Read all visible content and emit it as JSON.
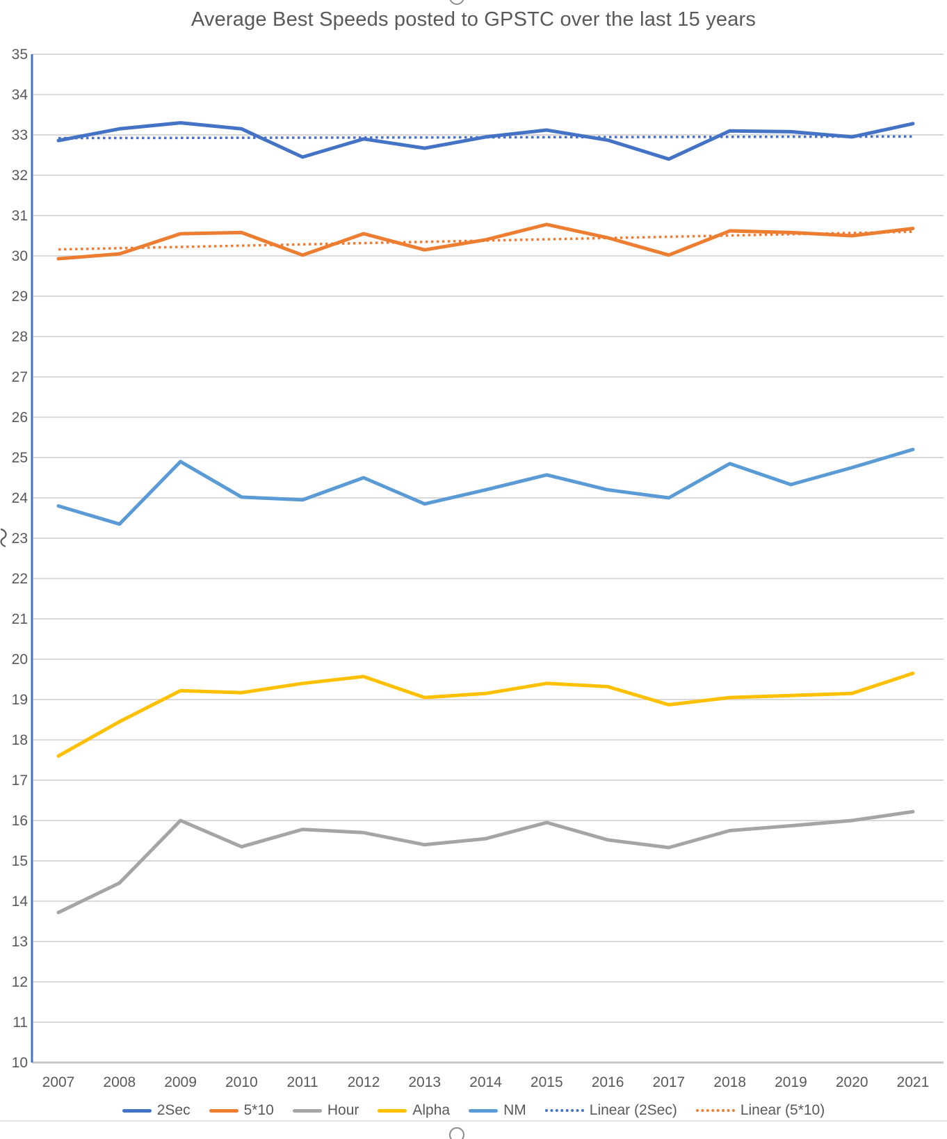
{
  "chart_data": {
    "type": "line",
    "title": "Average Best Speeds posted to GPSTC over the last 15 years",
    "categories": [
      "2007",
      "2008",
      "2009",
      "2010",
      "2011",
      "2012",
      "2013",
      "2014",
      "2015",
      "2016",
      "2017",
      "2018",
      "2019",
      "2020",
      "2021"
    ],
    "xlabel": "",
    "ylabel": "",
    "ylim": [
      10,
      35
    ],
    "yticks": [
      10,
      11,
      12,
      13,
      14,
      15,
      16,
      17,
      18,
      19,
      20,
      21,
      22,
      23,
      24,
      25,
      26,
      27,
      28,
      29,
      30,
      31,
      32,
      33,
      34,
      35
    ],
    "grid": true,
    "legend_position": "bottom",
    "series": [
      {
        "name": "2Sec",
        "color": "#4472C4",
        "style": "solid",
        "values": [
          32.86,
          33.15,
          33.3,
          33.15,
          32.45,
          32.9,
          32.67,
          32.95,
          33.12,
          32.87,
          32.4,
          33.1,
          33.08,
          32.95,
          33.28
        ]
      },
      {
        "name": "5*10",
        "color": "#ED7D31",
        "style": "solid",
        "values": [
          29.93,
          30.05,
          30.55,
          30.58,
          30.02,
          30.55,
          30.15,
          30.4,
          30.78,
          30.45,
          30.02,
          30.62,
          30.58,
          30.5,
          30.68
        ]
      },
      {
        "name": "Hour",
        "color": "#A5A5A5",
        "style": "solid",
        "values": [
          13.72,
          14.45,
          16.0,
          15.35,
          15.78,
          15.7,
          15.4,
          15.55,
          15.95,
          15.52,
          15.33,
          15.75,
          15.87,
          16.0,
          16.22
        ]
      },
      {
        "name": "Alpha",
        "color": "#FFC000",
        "style": "solid",
        "values": [
          17.6,
          18.45,
          19.22,
          19.17,
          19.4,
          19.57,
          19.05,
          19.15,
          19.4,
          19.32,
          18.87,
          19.05,
          19.1,
          19.15,
          19.65
        ]
      },
      {
        "name": "NM",
        "color": "#5B9BD5",
        "style": "solid",
        "values": [
          23.8,
          23.35,
          24.9,
          24.02,
          23.95,
          24.5,
          23.85,
          24.2,
          24.57,
          24.2,
          24.0,
          24.85,
          24.33,
          24.75,
          25.2
        ]
      },
      {
        "name": "Linear (2Sec)",
        "color": "#4472C4",
        "style": "dotted",
        "trend": true,
        "values": [
          32.92,
          32.96
        ]
      },
      {
        "name": "Linear (5*10)",
        "color": "#ED7D31",
        "style": "dotted",
        "trend": true,
        "values": [
          30.16,
          30.6
        ]
      }
    ],
    "colors": {
      "text": "#595959",
      "gridline": "#D9D9D9",
      "baseline": "#C9C9C9",
      "y_axis_line": "#4472C4"
    }
  }
}
